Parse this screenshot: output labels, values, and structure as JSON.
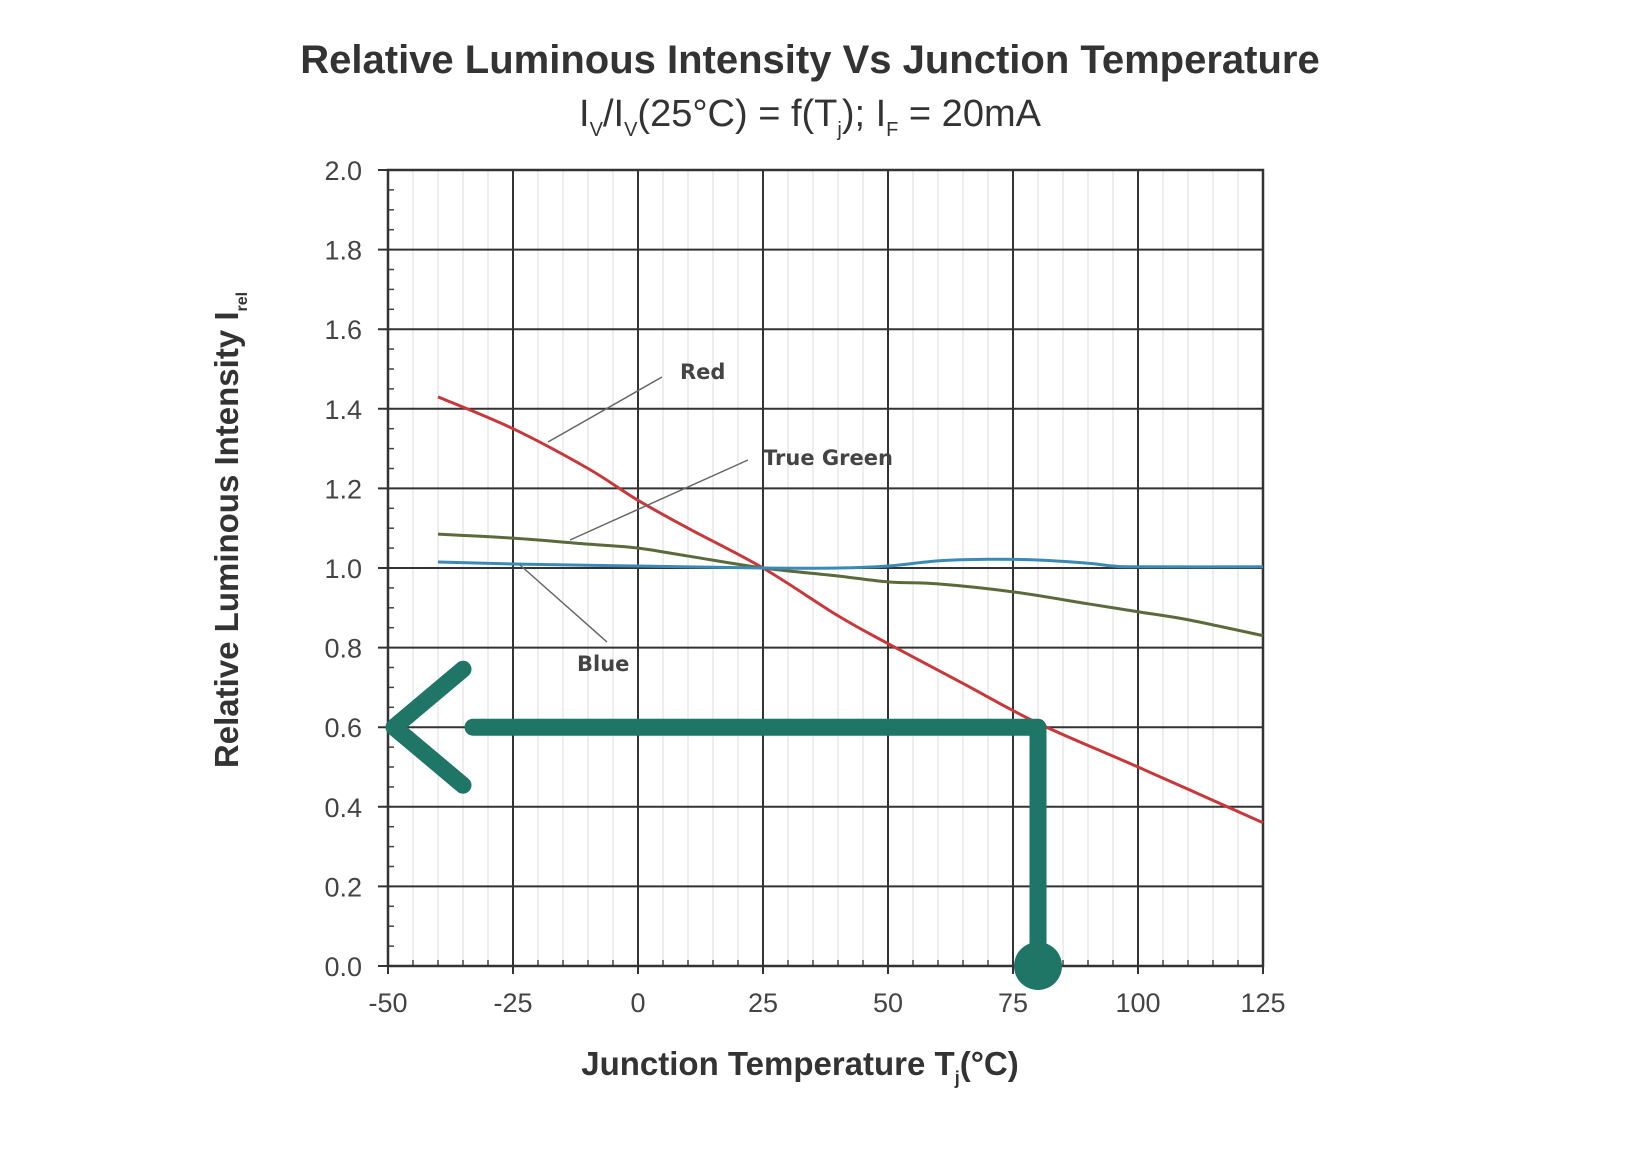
{
  "chart_data": {
    "type": "line",
    "title": "Relative Luminous Intensity Vs Junction Temperature",
    "subtitle": {
      "p1": "I",
      "s1": "V",
      "p2": "/I",
      "s2": "V",
      "p3": "(25°C) = f(T",
      "s3": "j",
      "p4": "); I",
      "s4": "F",
      "p5": " = 20mA"
    },
    "xlabel": {
      "main": "Junction Temperature T",
      "sub": "j",
      "suffix": "(°C)"
    },
    "ylabel": {
      "main": "Relative Luminous Intensity I",
      "sub": "rel"
    },
    "xlim": [
      -50,
      125
    ],
    "ylim": [
      0,
      2.0
    ],
    "xticks": [
      -50,
      -25,
      0,
      25,
      50,
      75,
      100,
      125
    ],
    "xtick_labels": [
      "-50",
      "-25",
      "0",
      "25",
      "50",
      "75",
      "100",
      "125"
    ],
    "yticks": [
      0,
      0.2,
      0.4,
      0.6,
      0.8,
      1.0,
      1.2,
      1.4,
      1.6,
      1.8,
      2.0
    ],
    "ytick_labels": [
      "0.0",
      "0.2",
      "0.4",
      "0.6",
      "0.8",
      "1.0",
      "1.2",
      "1.4",
      "1.6",
      "1.8",
      "2.0"
    ],
    "grid": true,
    "series": [
      {
        "name": "Red",
        "color": "#c8383a",
        "x": [
          -40,
          -25,
          -10,
          0,
          10,
          25,
          40,
          50,
          65,
          80,
          100,
          125
        ],
        "y": [
          1.43,
          1.35,
          1.25,
          1.17,
          1.1,
          1.0,
          0.88,
          0.81,
          0.71,
          0.61,
          0.5,
          0.36
        ]
      },
      {
        "name": "True Green",
        "color": "#5a6a3a",
        "x": [
          -40,
          -25,
          -10,
          0,
          10,
          25,
          40,
          50,
          60,
          75,
          90,
          100,
          110,
          125
        ],
        "y": [
          1.085,
          1.075,
          1.06,
          1.05,
          1.03,
          1.0,
          0.98,
          0.965,
          0.96,
          0.94,
          0.91,
          0.89,
          0.87,
          0.83
        ]
      },
      {
        "name": "Blue",
        "color": "#3a8ab8",
        "x": [
          -40,
          -25,
          0,
          25,
          40,
          50,
          60,
          70,
          80,
          90,
          95,
          100,
          125
        ],
        "y": [
          1.015,
          1.01,
          1.005,
          1.0,
          1.0,
          1.005,
          1.018,
          1.022,
          1.02,
          1.012,
          1.005,
          1.003,
          1.003
        ]
      }
    ],
    "annotation": {
      "color": "#1f7566",
      "from_x": 80,
      "level_y": 0.6,
      "to_x": -50
    }
  }
}
